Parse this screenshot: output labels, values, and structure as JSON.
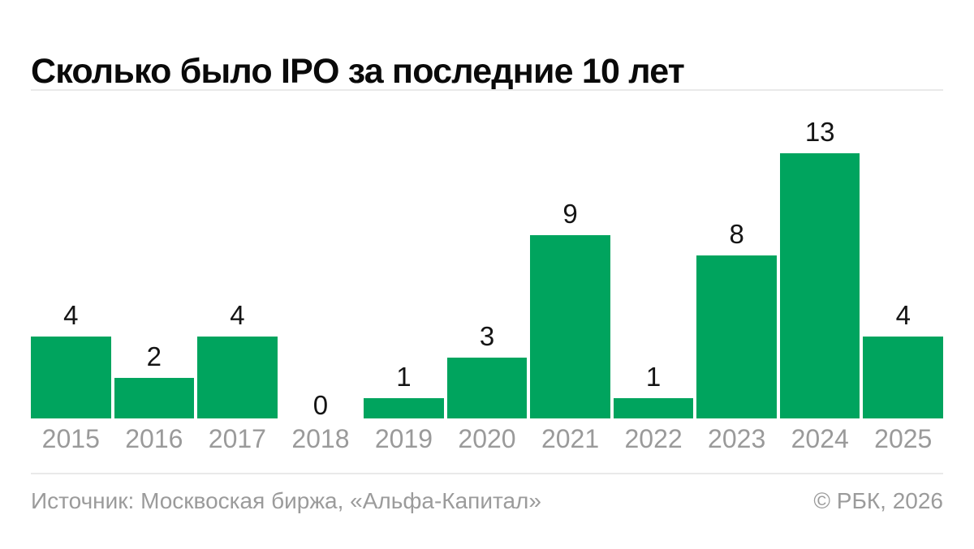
{
  "title": "Сколько было IPO за последние 10 лет",
  "footer": {
    "source": "Источник: Москвоская биржа, «Альфа-Капитал»",
    "copyright": "© РБК, 2026"
  },
  "colors": {
    "bar": "#00A45E",
    "title_text": "#0A0A0A",
    "value_label": "#141414",
    "axis_label": "#9A9A9A",
    "footer_text": "#9B9B9B",
    "divider": "#E9E9E9",
    "background": "#FFFFFF"
  },
  "chart_data": {
    "type": "bar",
    "title": "Сколько было IPO за последние 10 лет",
    "categories": [
      "2015",
      "2016",
      "2017",
      "2018",
      "2019",
      "2020",
      "2021",
      "2022",
      "2023",
      "2024",
      "2025"
    ],
    "values": [
      4,
      2,
      4,
      0,
      1,
      3,
      9,
      1,
      8,
      13,
      4
    ],
    "xlabel": "",
    "ylabel": "",
    "ylim": [
      0,
      13
    ],
    "grid": false,
    "legend": false,
    "value_labels": true,
    "bar_color": "#00A45E"
  }
}
